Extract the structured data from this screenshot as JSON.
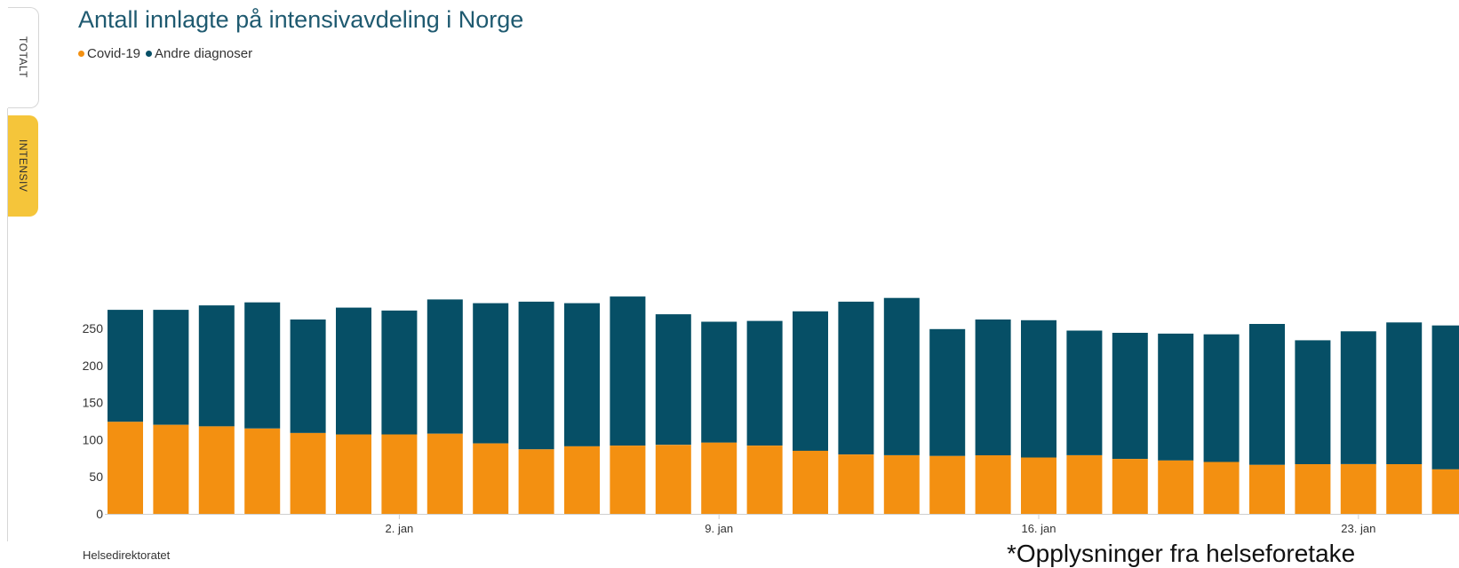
{
  "tabs": [
    {
      "label": "TOTALT",
      "active": false
    },
    {
      "label": "INTENSIV",
      "active": true
    }
  ],
  "source": "Helsedirektoratet",
  "footnote": "*Opplysninger fra helseforetake",
  "colors": {
    "covid": "#f39011",
    "other": "#064f66",
    "title": "#1f5a70",
    "active_tab": "#f5c53a"
  },
  "chart_data": {
    "type": "bar",
    "stacked": true,
    "title": "Antall innlagte på intensivavdeling i Norge",
    "ylim": [
      0,
      300
    ],
    "yticks": [
      0,
      50,
      100,
      150,
      200,
      250
    ],
    "xtick_labels": [
      {
        "index": 6,
        "label": "2. jan"
      },
      {
        "index": 13,
        "label": "9. jan"
      },
      {
        "index": 20,
        "label": "16. jan"
      },
      {
        "index": 27,
        "label": "23. jan"
      }
    ],
    "grid": false,
    "legend_position": "top-left",
    "series": [
      {
        "name": "Covid-19",
        "color": "#f39011",
        "values": [
          124,
          120,
          118,
          115,
          109,
          107,
          107,
          108,
          95,
          87,
          91,
          92,
          93,
          96,
          92,
          85,
          80,
          79,
          78,
          79,
          76,
          79,
          74,
          72,
          70,
          66,
          67,
          67,
          67,
          60
        ]
      },
      {
        "name": "Andre diagnoser",
        "color": "#064f66",
        "values": [
          151,
          155,
          163,
          170,
          153,
          171,
          167,
          181,
          189,
          199,
          193,
          201,
          176,
          163,
          168,
          188,
          206,
          212,
          171,
          183,
          185,
          168,
          170,
          171,
          172,
          190,
          167,
          179,
          191,
          194
        ]
      }
    ]
  }
}
